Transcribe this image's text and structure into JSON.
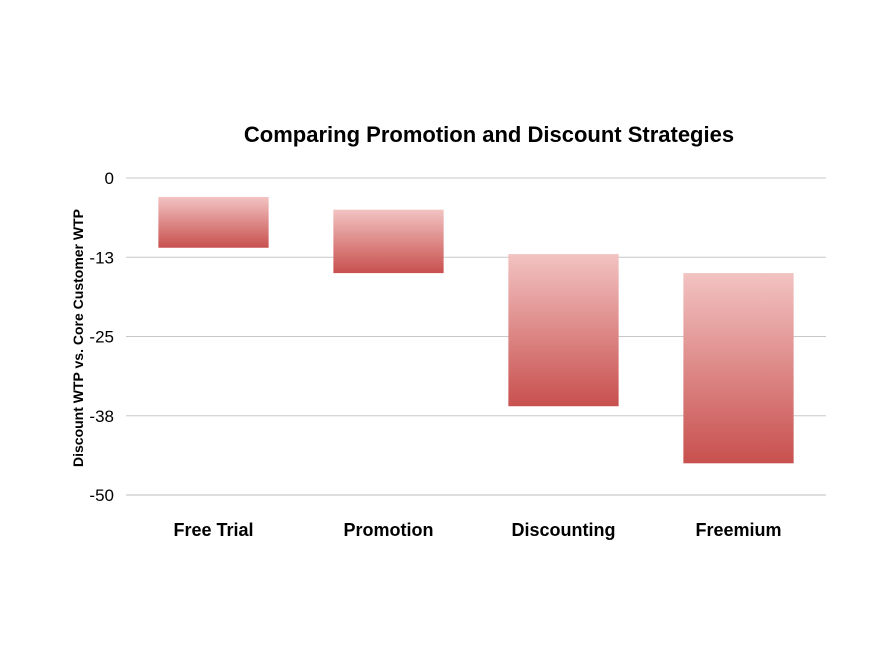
{
  "chart_data": {
    "type": "bar",
    "subtype": "floating-bar",
    "title": "Comparing Promotion and Discount Strategies",
    "xlabel": "",
    "ylabel": "Discount WTP vs. Core Customer WTP",
    "categories": [
      "Free Trial",
      "Promotion",
      "Discounting",
      "Freemium"
    ],
    "ranges": [
      {
        "category": "Free Trial",
        "high": -3,
        "low": -11
      },
      {
        "category": "Promotion",
        "high": -5,
        "low": -15
      },
      {
        "category": "Discounting",
        "high": -12,
        "low": -36
      },
      {
        "category": "Freemium",
        "high": -15,
        "low": -45
      }
    ],
    "yticks": [
      "0",
      "-13",
      "-25",
      "-38",
      "-50"
    ],
    "ylim": [
      -50,
      0
    ],
    "grid": true,
    "legend": "none",
    "colors": {
      "bar_top": "#f2c3c2",
      "bar_bottom": "#c8504e",
      "grid": "#c8c8c8",
      "text": "#000000"
    }
  }
}
